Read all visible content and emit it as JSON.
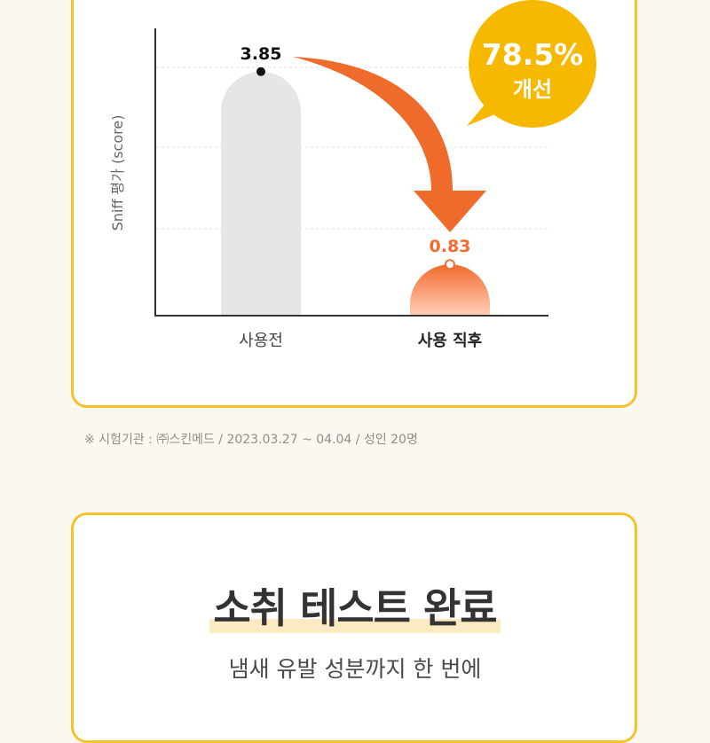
{
  "chart_data": {
    "type": "bar",
    "ylabel": "Sniff 평가 (score)",
    "categories": [
      "사용전",
      "사용 직후"
    ],
    "values": [
      3.85,
      0.83
    ],
    "value_labels": [
      "3.85",
      "0.83"
    ],
    "ylim": [
      0,
      4.5
    ],
    "grid": true,
    "colors": {
      "before": "#E6E6E4",
      "after": "#F26A2E",
      "after_light": "#FFD0B8",
      "arrow": "#EE6B2B",
      "badge": "#F7B800"
    },
    "callout": {
      "value": "78.5%",
      "text": "개선"
    }
  },
  "note": "※ 시험기관 : ㈜스킨메드 / 2023.03.27 ~ 04.04 / 성인 20명",
  "section2": {
    "title": "소취 테스트 완료",
    "subtitle": "냄새 유발 성분까지 한 번에"
  }
}
